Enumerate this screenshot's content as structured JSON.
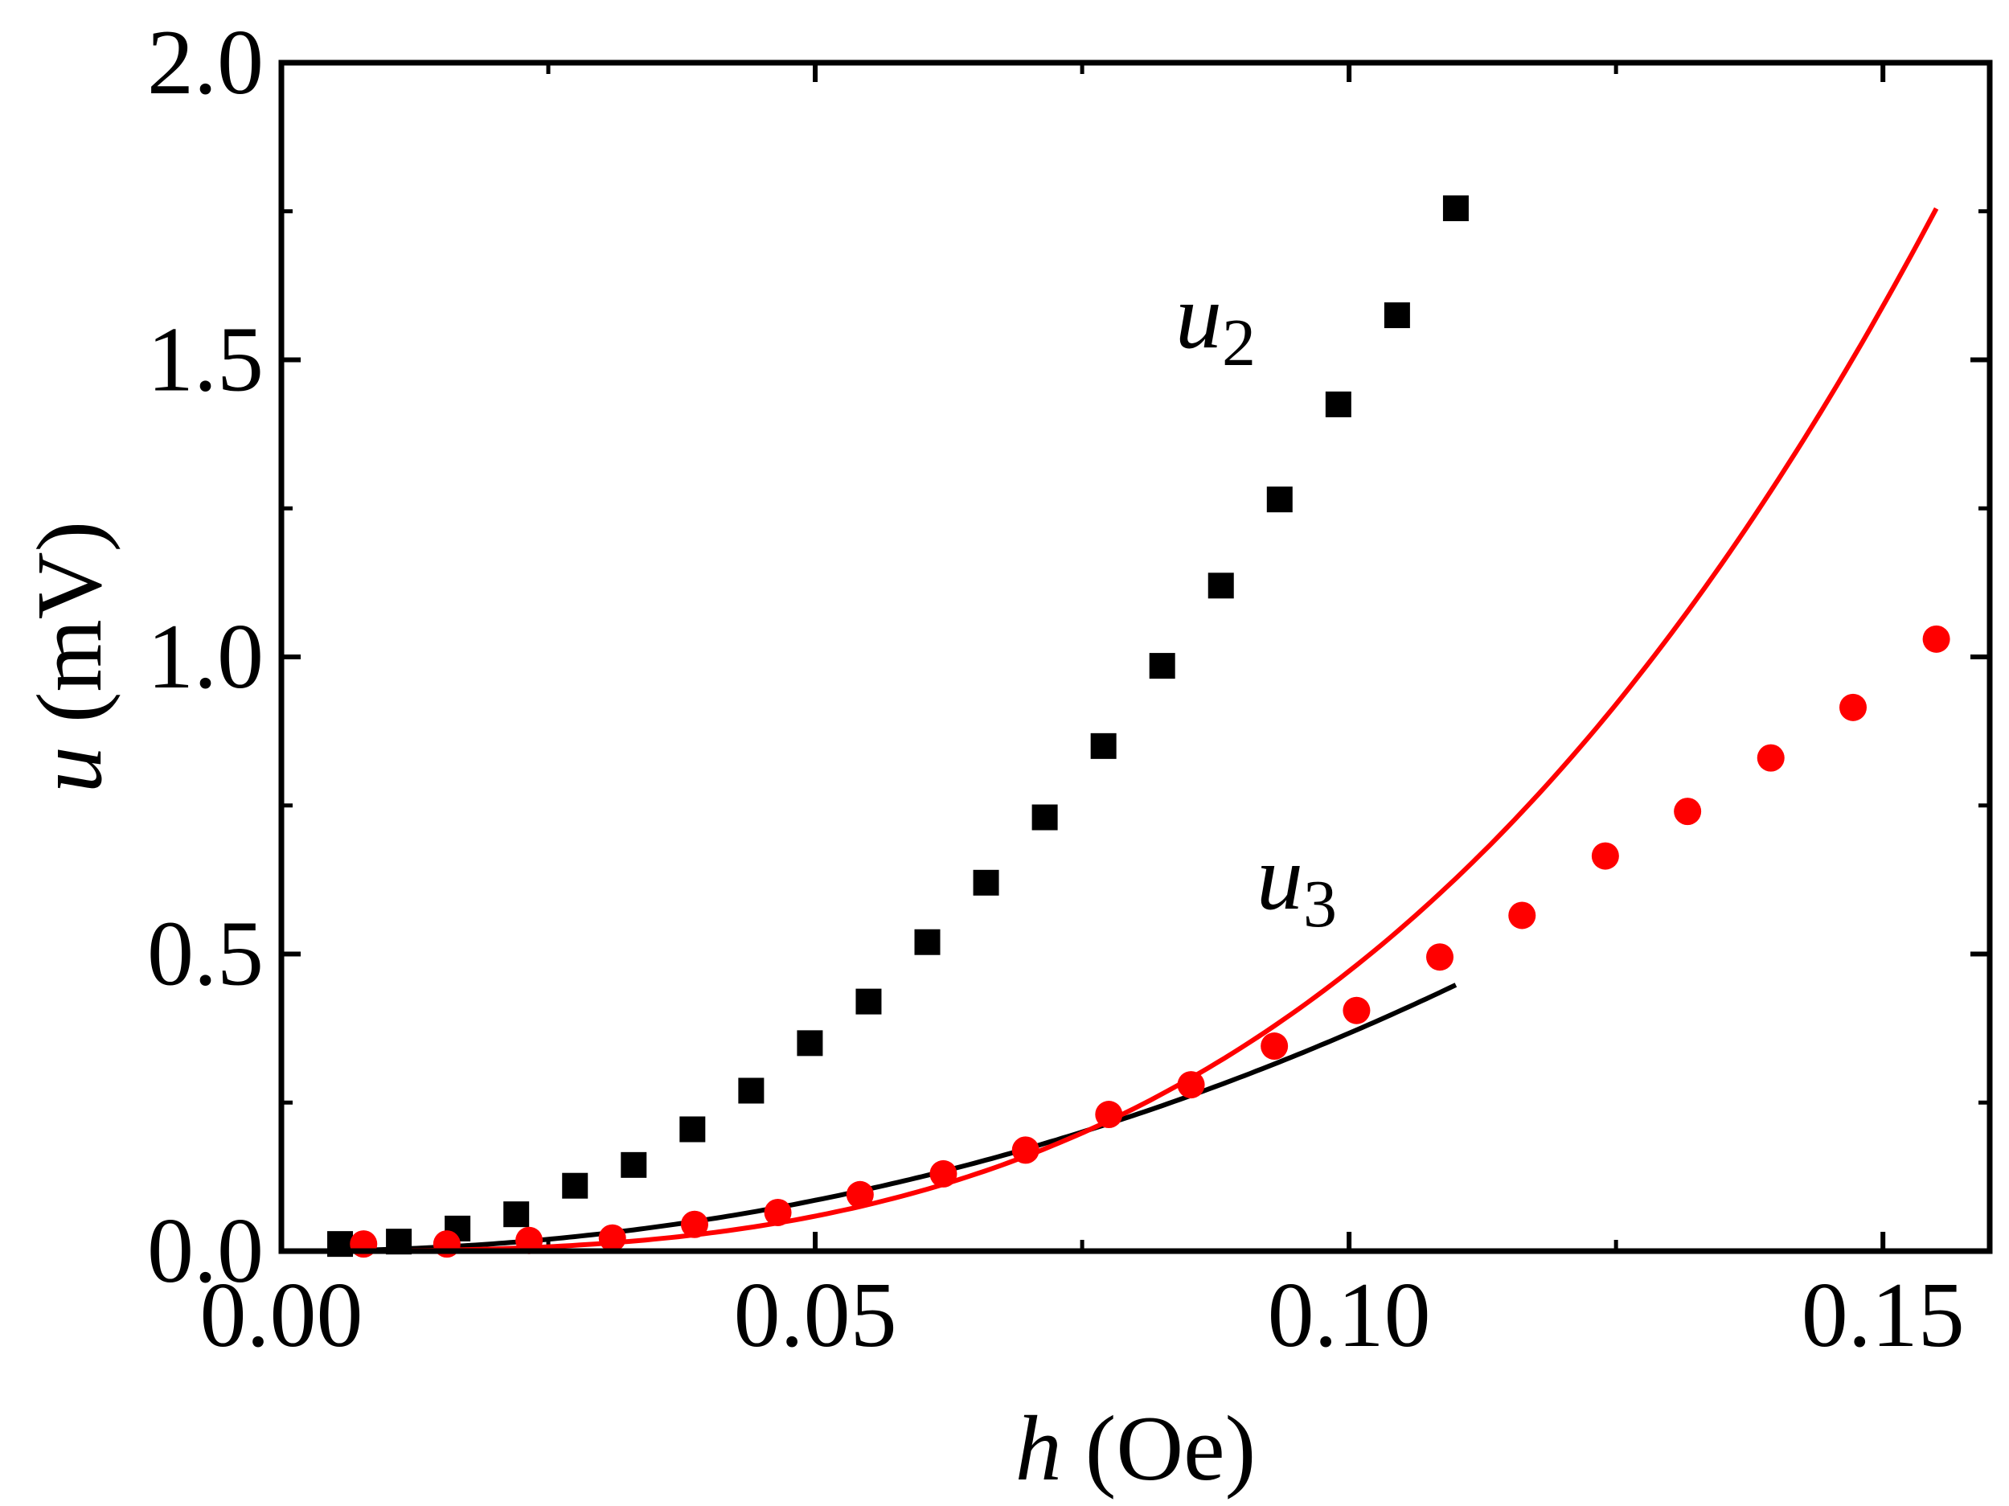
{
  "chart_data": {
    "type": "scatter",
    "title": "",
    "xlabel": {
      "var": "h",
      "unit": " (Oe)"
    },
    "ylabel": {
      "var": "u",
      "unit": " (mV)"
    },
    "xlim": [
      0.0,
      0.16
    ],
    "ylim": [
      0.0,
      2.0
    ],
    "xticks": [
      {
        "value": 0.0,
        "label": "0.00"
      },
      {
        "value": 0.05,
        "label": "0.05"
      },
      {
        "value": 0.1,
        "label": "0.10"
      },
      {
        "value": 0.15,
        "label": "0.15"
      }
    ],
    "yticks": [
      {
        "value": 0.0,
        "label": "0.0"
      },
      {
        "value": 0.5,
        "label": "0.5"
      },
      {
        "value": 1.0,
        "label": "1.0"
      },
      {
        "value": 1.5,
        "label": "1.5"
      },
      {
        "value": 2.0,
        "label": "2.0"
      }
    ],
    "series": [
      {
        "name": "u2",
        "label_main": "u",
        "label_sub": "2",
        "color": "#000000",
        "marker": "square",
        "points": [
          [
            0.0055,
            0.012
          ],
          [
            0.011,
            0.016
          ],
          [
            0.0165,
            0.038
          ],
          [
            0.022,
            0.062
          ],
          [
            0.0275,
            0.11
          ],
          [
            0.033,
            0.145
          ],
          [
            0.0385,
            0.205
          ],
          [
            0.044,
            0.27
          ],
          [
            0.0495,
            0.35
          ],
          [
            0.055,
            0.42
          ],
          [
            0.0605,
            0.52
          ],
          [
            0.066,
            0.62
          ],
          [
            0.0715,
            0.73
          ],
          [
            0.077,
            0.85
          ],
          [
            0.0825,
            0.985
          ],
          [
            0.088,
            1.12
          ],
          [
            0.0935,
            1.265
          ],
          [
            0.099,
            1.425
          ],
          [
            0.1045,
            1.575
          ],
          [
            0.11,
            1.755
          ]
        ],
        "fit": {
          "coefficient": 46.17,
          "exponent": 2.1,
          "x_range": [
            0.0,
            0.11
          ]
        }
      },
      {
        "name": "u3",
        "label_main": "u",
        "label_sub": "3",
        "color": "#ff0000",
        "marker": "circle",
        "points": [
          [
            0.0077,
            0.012
          ],
          [
            0.0155,
            0.012
          ],
          [
            0.0232,
            0.018
          ],
          [
            0.031,
            0.022
          ],
          [
            0.0387,
            0.045
          ],
          [
            0.0465,
            0.065
          ],
          [
            0.0542,
            0.095
          ],
          [
            0.062,
            0.13
          ],
          [
            0.0697,
            0.17
          ],
          [
            0.0775,
            0.23
          ],
          [
            0.0852,
            0.28
          ],
          [
            0.093,
            0.345
          ],
          [
            0.1007,
            0.405
          ],
          [
            0.1085,
            0.495
          ],
          [
            0.1162,
            0.565
          ],
          [
            0.124,
            0.665
          ],
          [
            0.1317,
            0.74
          ],
          [
            0.1395,
            0.83
          ],
          [
            0.1472,
            0.915
          ],
          [
            0.155,
            1.03
          ]
        ],
        "fit": {
          "coefficient": 471.2,
          "exponent": 3.0,
          "x_range": [
            0.0,
            0.155
          ]
        }
      }
    ],
    "legend": "inline"
  }
}
